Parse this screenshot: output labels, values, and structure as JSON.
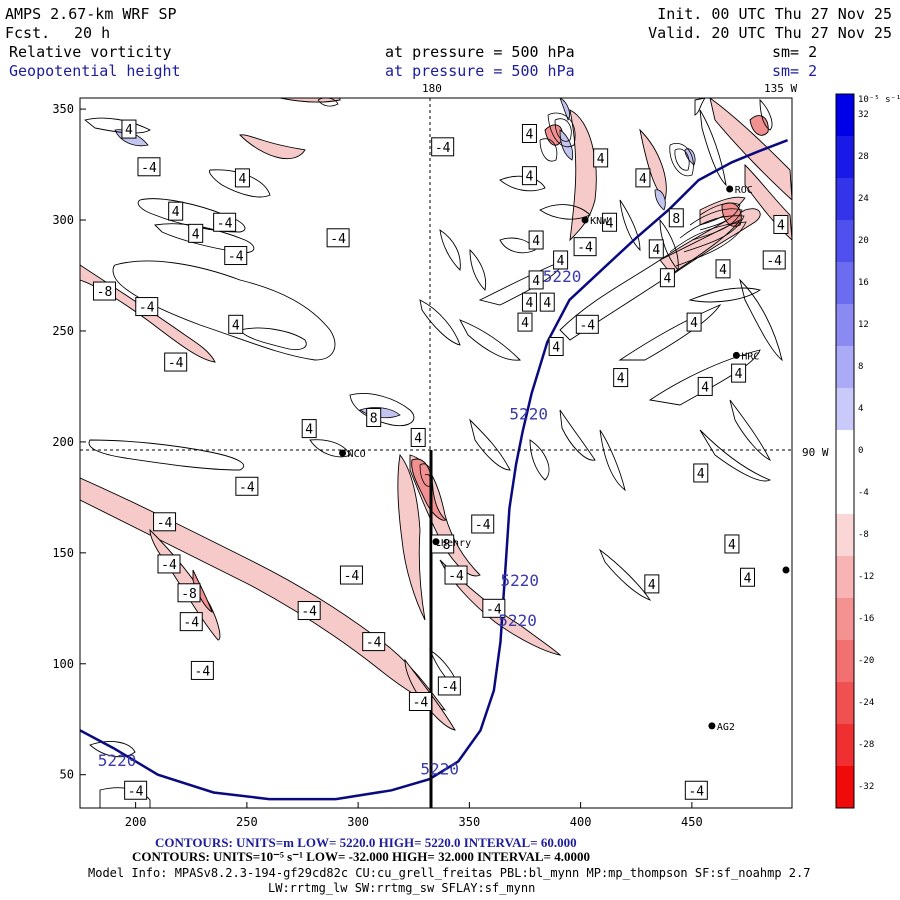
{
  "header": {
    "title": "AMPS 2.67-km WRF SP",
    "fcst_label": "Fcst.",
    "fcst_value": "20 h",
    "init": "Init. 00 UTC Thu 27 Nov 25",
    "valid": "Valid. 20 UTC Thu 27 Nov 25",
    "field1": "Relative vorticity",
    "field2": "Geopotential height",
    "level1": "at pressure =  500 hPa",
    "level2": "at pressure =  500 hPa",
    "sm1": "sm= 2",
    "sm2": "sm= 2"
  },
  "map_labels": {
    "lon180": "180",
    "lon135": "135 W",
    "lon90": "90 W"
  },
  "colorbar": {
    "unit": "10⁻⁵ s⁻¹",
    "ticks": [
      "32",
      "28",
      "24",
      "20",
      "16",
      "12",
      "8",
      "4",
      "0",
      "-4",
      "-8",
      "-12",
      "-16",
      "-20",
      "-24",
      "-28",
      "-32"
    ],
    "colors": [
      "#0000e8",
      "#1a1ae8",
      "#3434ea",
      "#5050ee",
      "#6c6cf0",
      "#8a8af2",
      "#aaaaf6",
      "#cacafa",
      "#ffffff",
      "#ffffff",
      "#fad6d6",
      "#f8b4b4",
      "#f49292",
      "#f27070",
      "#f05050",
      "#f03030",
      "#f00a0a"
    ]
  },
  "stations": [
    {
      "name": "NCO",
      "x": 293,
      "y": 195
    },
    {
      "name": "Henry",
      "x": 335,
      "y": 155
    },
    {
      "name": "AG2",
      "x": 459,
      "y": 72
    },
    {
      "name": "HRC",
      "x": 470,
      "y": 239
    },
    {
      "name": "ROC",
      "x": 467,
      "y": 314
    },
    {
      "name": "KNW",
      "x": 402,
      "y": 300
    }
  ],
  "vort_labels": [
    {
      "t": "4",
      "x": 197,
      "y": 341
    },
    {
      "t": "-4",
      "x": 206,
      "y": 324
    },
    {
      "t": "4",
      "x": 218,
      "y": 304
    },
    {
      "t": "4",
      "x": 227,
      "y": 294
    },
    {
      "t": "-4",
      "x": 240,
      "y": 299
    },
    {
      "t": "-4",
      "x": 245,
      "y": 284
    },
    {
      "t": "4",
      "x": 248,
      "y": 319
    },
    {
      "t": "-4",
      "x": 291,
      "y": 292
    },
    {
      "t": "-4",
      "x": 338,
      "y": 333
    },
    {
      "t": "-8",
      "x": 186,
      "y": 268
    },
    {
      "t": "-4",
      "x": 205,
      "y": 261
    },
    {
      "t": "4",
      "x": 245,
      "y": 253
    },
    {
      "t": "-4",
      "x": 218,
      "y": 236
    },
    {
      "t": "4",
      "x": 278,
      "y": 206
    },
    {
      "t": "8",
      "x": 307,
      "y": 211
    },
    {
      "t": "4",
      "x": 327,
      "y": 202
    },
    {
      "t": "-4",
      "x": 250,
      "y": 180
    },
    {
      "t": "-4",
      "x": 213,
      "y": 164
    },
    {
      "t": "-4",
      "x": 215,
      "y": 145
    },
    {
      "t": "-8",
      "x": 224,
      "y": 132
    },
    {
      "t": "-4",
      "x": 225,
      "y": 119
    },
    {
      "t": "-4",
      "x": 230,
      "y": 97
    },
    {
      "t": "-4",
      "x": 278,
      "y": 124
    },
    {
      "t": "-4",
      "x": 297,
      "y": 140
    },
    {
      "t": "-4",
      "x": 307,
      "y": 110
    },
    {
      "t": "-4",
      "x": 328,
      "y": 83
    },
    {
      "t": "-4",
      "x": 341,
      "y": 90
    },
    {
      "t": "-8",
      "x": 338,
      "y": 154
    },
    {
      "t": "-4",
      "x": 344,
      "y": 140
    },
    {
      "t": "-4",
      "x": 356,
      "y": 163
    },
    {
      "t": "-4",
      "x": 361,
      "y": 125
    },
    {
      "t": "4",
      "x": 377,
      "y": 339
    },
    {
      "t": "4",
      "x": 377,
      "y": 320
    },
    {
      "t": "4",
      "x": 380,
      "y": 291
    },
    {
      "t": "4",
      "x": 380,
      "y": 273
    },
    {
      "t": "4",
      "x": 377,
      "y": 263
    },
    {
      "t": "4",
      "x": 375,
      "y": 254
    },
    {
      "t": "4",
      "x": 385,
      "y": 263
    },
    {
      "t": "4",
      "x": 389,
      "y": 243
    },
    {
      "t": "4",
      "x": 391,
      "y": 282
    },
    {
      "t": "-4",
      "x": 402,
      "y": 288
    },
    {
      "t": "-4",
      "x": 403,
      "y": 253
    },
    {
      "t": "4",
      "x": 409,
      "y": 328
    },
    {
      "t": "4",
      "x": 413,
      "y": 299
    },
    {
      "t": "4",
      "x": 418,
      "y": 229
    },
    {
      "t": "4",
      "x": 428,
      "y": 319
    },
    {
      "t": "4",
      "x": 434,
      "y": 287
    },
    {
      "t": "4",
      "x": 439,
      "y": 274
    },
    {
      "t": "8",
      "x": 443,
      "y": 301
    },
    {
      "t": "4",
      "x": 451,
      "y": 254
    },
    {
      "t": "4",
      "x": 456,
      "y": 225
    },
    {
      "t": "4",
      "x": 454,
      "y": 186
    },
    {
      "t": "4",
      "x": 464,
      "y": 278
    },
    {
      "t": "4",
      "x": 471,
      "y": 231
    },
    {
      "t": "-4",
      "x": 487,
      "y": 282
    },
    {
      "t": "4",
      "x": 490,
      "y": 298
    },
    {
      "t": "4",
      "x": 432,
      "y": 136
    },
    {
      "t": "4",
      "x": 468,
      "y": 154
    },
    {
      "t": "4",
      "x": 475,
      "y": 139
    },
    {
      "t": "-4",
      "x": 200,
      "y": 43
    },
    {
      "t": "-4",
      "x": 452,
      "y": 43
    }
  ],
  "chart_data": {
    "type": "contour-map",
    "title": "AMPS 2.67-km WRF SP",
    "fields": [
      "Relative vorticity at pressure = 500 hPa",
      "Geopotential height at pressure = 500 hPa"
    ],
    "xlim": [
      175,
      495
    ],
    "ylim": [
      35,
      355
    ],
    "x_ticks": [
      200,
      250,
      300,
      350,
      400,
      450
    ],
    "y_ticks": [
      50,
      100,
      150,
      200,
      250,
      300,
      350
    ],
    "height_contour_labels": [
      {
        "t": "5220",
        "x": 383,
        "y": 272
      },
      {
        "t": "5220",
        "x": 368,
        "y": 210
      },
      {
        "t": "5220",
        "x": 364,
        "y": 135
      },
      {
        "t": "5220",
        "x": 363,
        "y": 117
      },
      {
        "t": "5220",
        "x": 183,
        "y": 54
      },
      {
        "t": "5220",
        "x": 328,
        "y": 50
      }
    ],
    "height_contour_5220": [
      [
        175,
        70
      ],
      [
        190,
        62
      ],
      [
        210,
        50
      ],
      [
        235,
        42
      ],
      [
        260,
        39
      ],
      [
        290,
        39
      ],
      [
        315,
        43
      ],
      [
        332,
        48
      ],
      [
        345,
        56
      ],
      [
        355,
        70
      ],
      [
        361,
        88
      ],
      [
        364,
        110
      ],
      [
        366,
        140
      ],
      [
        368,
        170
      ],
      [
        371,
        190
      ],
      [
        374,
        205
      ],
      [
        378,
        222
      ],
      [
        385,
        245
      ],
      [
        395,
        264
      ],
      [
        410,
        278
      ],
      [
        425,
        292
      ],
      [
        440,
        305
      ],
      [
        453,
        318
      ],
      [
        468,
        326
      ],
      [
        480,
        331
      ],
      [
        493,
        336
      ]
    ],
    "contours_info_1": "CONTOURS:  UNITS=m  LOW=   5220.0       HIGH=   5220.0       INTERVAL=    60.000",
    "contours_info_2": "CONTOURS:  UNITS=10⁻⁵ s⁻¹  LOW=  -32.000       HIGH=  32.000       INTERVAL=   4.0000"
  },
  "footer": {
    "model_info": "Model Info: MPASv8.2.3-194-gf29cd82c CU:cu_grell_freitas PBL:bl_mynn MP:mp_thompson SF:sf_noahmp 2.7",
    "physics": "LW:rrtmg_lw SW:rrtmg_sw SFLAY:sf_mynn"
  }
}
